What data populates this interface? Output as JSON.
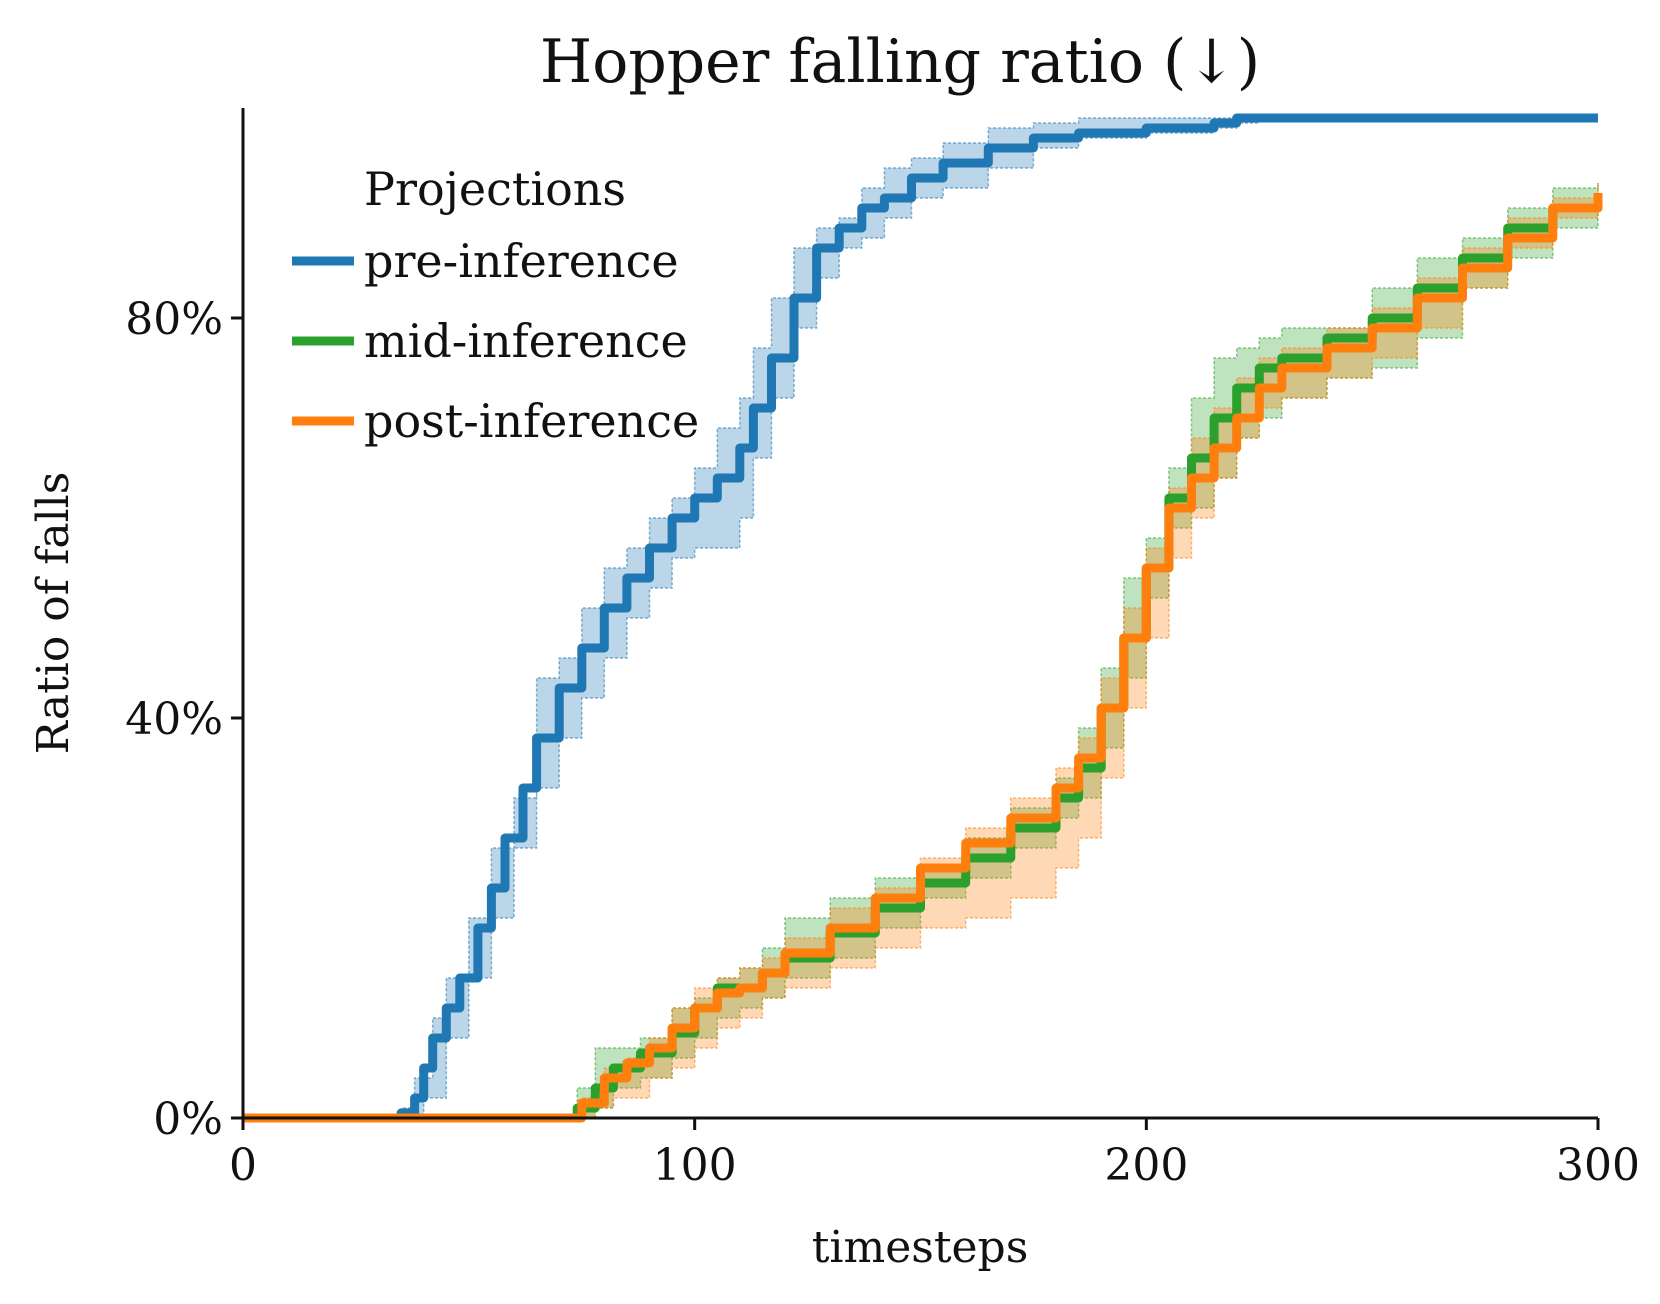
{
  "chart_data": {
    "type": "line",
    "title": "Hopper falling ratio (↓)",
    "xlabel": "timesteps",
    "ylabel": "Ratio of falls",
    "xlim": [
      0,
      300
    ],
    "ylim": [
      0,
      1.0
    ],
    "xticks": [
      0,
      100,
      200,
      300
    ],
    "xtick_labels": [
      "0",
      "100",
      "200",
      "300"
    ],
    "yticks": [
      0,
      0.4,
      0.8
    ],
    "ytick_labels": [
      "0%",
      "40%",
      "80%"
    ],
    "grid": false,
    "legend": {
      "title": "Projections",
      "placement": "top-left"
    },
    "series": [
      {
        "name": "pre-inference",
        "color": "#1f77b4",
        "points": [
          [
            0,
            0
          ],
          [
            33,
            0
          ],
          [
            35,
            0.005
          ],
          [
            38,
            0.02
          ],
          [
            40,
            0.05
          ],
          [
            42,
            0.08
          ],
          [
            45,
            0.11
          ],
          [
            48,
            0.14
          ],
          [
            52,
            0.19
          ],
          [
            55,
            0.23
          ],
          [
            58,
            0.28
          ],
          [
            62,
            0.33
          ],
          [
            65,
            0.38
          ],
          [
            70,
            0.43
          ],
          [
            75,
            0.47
          ],
          [
            80,
            0.51
          ],
          [
            85,
            0.54
          ],
          [
            90,
            0.57
          ],
          [
            95,
            0.6
          ],
          [
            100,
            0.62
          ],
          [
            105,
            0.64
          ],
          [
            110,
            0.67
          ],
          [
            113,
            0.71
          ],
          [
            117,
            0.76
          ],
          [
            122,
            0.82
          ],
          [
            127,
            0.87
          ],
          [
            132,
            0.89
          ],
          [
            137,
            0.91
          ],
          [
            142,
            0.92
          ],
          [
            148,
            0.94
          ],
          [
            155,
            0.955
          ],
          [
            165,
            0.97
          ],
          [
            175,
            0.98
          ],
          [
            185,
            0.985
          ],
          [
            200,
            0.99
          ],
          [
            215,
            0.995
          ],
          [
            220,
            1.0
          ],
          [
            300,
            1.0
          ]
        ],
        "band_lower": [
          [
            0,
            0
          ],
          [
            33,
            0
          ],
          [
            36,
            0
          ],
          [
            40,
            0.02
          ],
          [
            45,
            0.08
          ],
          [
            50,
            0.14
          ],
          [
            55,
            0.2
          ],
          [
            60,
            0.27
          ],
          [
            65,
            0.33
          ],
          [
            70,
            0.38
          ],
          [
            75,
            0.42
          ],
          [
            80,
            0.46
          ],
          [
            85,
            0.5
          ],
          [
            90,
            0.53
          ],
          [
            95,
            0.56
          ],
          [
            100,
            0.57
          ],
          [
            105,
            0.57
          ],
          [
            110,
            0.6
          ],
          [
            113,
            0.66
          ],
          [
            117,
            0.72
          ],
          [
            122,
            0.79
          ],
          [
            127,
            0.84
          ],
          [
            132,
            0.87
          ],
          [
            137,
            0.88
          ],
          [
            142,
            0.9
          ],
          [
            148,
            0.92
          ],
          [
            155,
            0.93
          ],
          [
            165,
            0.95
          ],
          [
            175,
            0.97
          ],
          [
            185,
            0.98
          ],
          [
            200,
            0.985
          ],
          [
            215,
            0.99
          ],
          [
            220,
            0.995
          ],
          [
            225,
            1.0
          ],
          [
            300,
            1.0
          ]
        ],
        "band_upper": [
          [
            0,
            0
          ],
          [
            32,
            0
          ],
          [
            35,
            0.01
          ],
          [
            38,
            0.04
          ],
          [
            42,
            0.1
          ],
          [
            45,
            0.14
          ],
          [
            50,
            0.2
          ],
          [
            55,
            0.27
          ],
          [
            60,
            0.32
          ],
          [
            65,
            0.44
          ],
          [
            70,
            0.46
          ],
          [
            75,
            0.51
          ],
          [
            80,
            0.55
          ],
          [
            85,
            0.57
          ],
          [
            90,
            0.6
          ],
          [
            95,
            0.62
          ],
          [
            100,
            0.65
          ],
          [
            105,
            0.69
          ],
          [
            110,
            0.72
          ],
          [
            113,
            0.77
          ],
          [
            117,
            0.82
          ],
          [
            122,
            0.87
          ],
          [
            127,
            0.89
          ],
          [
            132,
            0.9
          ],
          [
            137,
            0.93
          ],
          [
            142,
            0.95
          ],
          [
            148,
            0.96
          ],
          [
            155,
            0.975
          ],
          [
            165,
            0.99
          ],
          [
            175,
            0.995
          ],
          [
            185,
            1.0
          ],
          [
            300,
            1.0
          ]
        ]
      },
      {
        "name": "mid-inference",
        "color": "#2ca02c",
        "points": [
          [
            0,
            0
          ],
          [
            72,
            0
          ],
          [
            74,
            0.01
          ],
          [
            78,
            0.03
          ],
          [
            82,
            0.05
          ],
          [
            88,
            0.065
          ],
          [
            95,
            0.085
          ],
          [
            100,
            0.11
          ],
          [
            105,
            0.13
          ],
          [
            110,
            0.13
          ],
          [
            115,
            0.145
          ],
          [
            120,
            0.16
          ],
          [
            130,
            0.185
          ],
          [
            140,
            0.21
          ],
          [
            150,
            0.235
          ],
          [
            160,
            0.26
          ],
          [
            170,
            0.29
          ],
          [
            180,
            0.32
          ],
          [
            185,
            0.35
          ],
          [
            190,
            0.41
          ],
          [
            195,
            0.48
          ],
          [
            200,
            0.55
          ],
          [
            205,
            0.62
          ],
          [
            210,
            0.66
          ],
          [
            215,
            0.7
          ],
          [
            220,
            0.73
          ],
          [
            225,
            0.75
          ],
          [
            230,
            0.76
          ],
          [
            240,
            0.78
          ],
          [
            250,
            0.8
          ],
          [
            260,
            0.83
          ],
          [
            270,
            0.86
          ],
          [
            280,
            0.89
          ],
          [
            290,
            0.91
          ],
          [
            300,
            0.92
          ]
        ],
        "band_lower": [
          [
            0,
            0
          ],
          [
            74,
            0
          ],
          [
            78,
            0.01
          ],
          [
            82,
            0.03
          ],
          [
            88,
            0.04
          ],
          [
            95,
            0.06
          ],
          [
            100,
            0.08
          ],
          [
            105,
            0.1
          ],
          [
            110,
            0.11
          ],
          [
            115,
            0.12
          ],
          [
            120,
            0.14
          ],
          [
            130,
            0.16
          ],
          [
            140,
            0.19
          ],
          [
            150,
            0.22
          ],
          [
            160,
            0.24
          ],
          [
            170,
            0.27
          ],
          [
            180,
            0.3
          ],
          [
            185,
            0.32
          ],
          [
            190,
            0.37
          ],
          [
            195,
            0.44
          ],
          [
            200,
            0.52
          ],
          [
            205,
            0.59
          ],
          [
            210,
            0.61
          ],
          [
            215,
            0.64
          ],
          [
            220,
            0.68
          ],
          [
            225,
            0.7
          ],
          [
            230,
            0.72
          ],
          [
            240,
            0.74
          ],
          [
            250,
            0.75
          ],
          [
            260,
            0.78
          ],
          [
            270,
            0.83
          ],
          [
            280,
            0.86
          ],
          [
            290,
            0.89
          ],
          [
            300,
            0.9
          ]
        ],
        "band_upper": [
          [
            0,
            0
          ],
          [
            72,
            0
          ],
          [
            74,
            0.03
          ],
          [
            78,
            0.07
          ],
          [
            82,
            0.07
          ],
          [
            88,
            0.08
          ],
          [
            95,
            0.11
          ],
          [
            100,
            0.12
          ],
          [
            105,
            0.14
          ],
          [
            110,
            0.15
          ],
          [
            115,
            0.17
          ],
          [
            120,
            0.2
          ],
          [
            130,
            0.22
          ],
          [
            140,
            0.24
          ],
          [
            150,
            0.25
          ],
          [
            160,
            0.28
          ],
          [
            170,
            0.31
          ],
          [
            180,
            0.34
          ],
          [
            185,
            0.39
          ],
          [
            190,
            0.45
          ],
          [
            195,
            0.54
          ],
          [
            200,
            0.58
          ],
          [
            205,
            0.65
          ],
          [
            210,
            0.72
          ],
          [
            215,
            0.76
          ],
          [
            220,
            0.77
          ],
          [
            225,
            0.78
          ],
          [
            230,
            0.79
          ],
          [
            240,
            0.79
          ],
          [
            250,
            0.83
          ],
          [
            260,
            0.86
          ],
          [
            270,
            0.88
          ],
          [
            280,
            0.91
          ],
          [
            290,
            0.93
          ],
          [
            300,
            0.935
          ]
        ]
      },
      {
        "name": "post-inference",
        "color": "#ff7f0e",
        "points": [
          [
            0,
            0
          ],
          [
            73,
            0
          ],
          [
            75,
            0.015
          ],
          [
            80,
            0.04
          ],
          [
            85,
            0.055
          ],
          [
            90,
            0.07
          ],
          [
            95,
            0.09
          ],
          [
            100,
            0.11
          ],
          [
            105,
            0.125
          ],
          [
            110,
            0.13
          ],
          [
            115,
            0.145
          ],
          [
            120,
            0.165
          ],
          [
            130,
            0.19
          ],
          [
            140,
            0.22
          ],
          [
            150,
            0.25
          ],
          [
            160,
            0.275
          ],
          [
            170,
            0.3
          ],
          [
            180,
            0.33
          ],
          [
            185,
            0.36
          ],
          [
            190,
            0.41
          ],
          [
            195,
            0.48
          ],
          [
            200,
            0.55
          ],
          [
            205,
            0.61
          ],
          [
            210,
            0.64
          ],
          [
            215,
            0.67
          ],
          [
            220,
            0.7
          ],
          [
            225,
            0.73
          ],
          [
            230,
            0.75
          ],
          [
            240,
            0.77
          ],
          [
            250,
            0.79
          ],
          [
            260,
            0.82
          ],
          [
            270,
            0.85
          ],
          [
            280,
            0.88
          ],
          [
            290,
            0.91
          ],
          [
            300,
            0.925
          ]
        ],
        "band_lower": [
          [
            0,
            0
          ],
          [
            73,
            0
          ],
          [
            78,
            0.01
          ],
          [
            82,
            0.02
          ],
          [
            90,
            0.04
          ],
          [
            95,
            0.05
          ],
          [
            100,
            0.07
          ],
          [
            105,
            0.09
          ],
          [
            110,
            0.1
          ],
          [
            115,
            0.12
          ],
          [
            120,
            0.13
          ],
          [
            130,
            0.15
          ],
          [
            140,
            0.17
          ],
          [
            150,
            0.19
          ],
          [
            160,
            0.2
          ],
          [
            170,
            0.22
          ],
          [
            180,
            0.25
          ],
          [
            185,
            0.28
          ],
          [
            190,
            0.34
          ],
          [
            195,
            0.41
          ],
          [
            200,
            0.48
          ],
          [
            205,
            0.56
          ],
          [
            210,
            0.6
          ],
          [
            215,
            0.64
          ],
          [
            220,
            0.68
          ],
          [
            225,
            0.71
          ],
          [
            230,
            0.72
          ],
          [
            240,
            0.74
          ],
          [
            250,
            0.76
          ],
          [
            260,
            0.79
          ],
          [
            270,
            0.83
          ],
          [
            280,
            0.87
          ],
          [
            290,
            0.9
          ],
          [
            300,
            0.92
          ]
        ],
        "band_upper": [
          [
            0,
            0
          ],
          [
            72,
            0
          ],
          [
            75,
            0.02
          ],
          [
            80,
            0.05
          ],
          [
            85,
            0.06
          ],
          [
            90,
            0.08
          ],
          [
            95,
            0.11
          ],
          [
            100,
            0.13
          ],
          [
            105,
            0.14
          ],
          [
            110,
            0.15
          ],
          [
            115,
            0.16
          ],
          [
            120,
            0.18
          ],
          [
            130,
            0.21
          ],
          [
            140,
            0.23
          ],
          [
            150,
            0.26
          ],
          [
            160,
            0.29
          ],
          [
            170,
            0.32
          ],
          [
            180,
            0.35
          ],
          [
            185,
            0.38
          ],
          [
            190,
            0.44
          ],
          [
            195,
            0.51
          ],
          [
            200,
            0.57
          ],
          [
            205,
            0.63
          ],
          [
            210,
            0.68
          ],
          [
            215,
            0.71
          ],
          [
            220,
            0.74
          ],
          [
            225,
            0.76
          ],
          [
            230,
            0.77
          ],
          [
            240,
            0.79
          ],
          [
            250,
            0.81
          ],
          [
            260,
            0.84
          ],
          [
            270,
            0.87
          ],
          [
            280,
            0.9
          ],
          [
            290,
            0.92
          ],
          [
            300,
            0.935
          ]
        ]
      }
    ]
  }
}
